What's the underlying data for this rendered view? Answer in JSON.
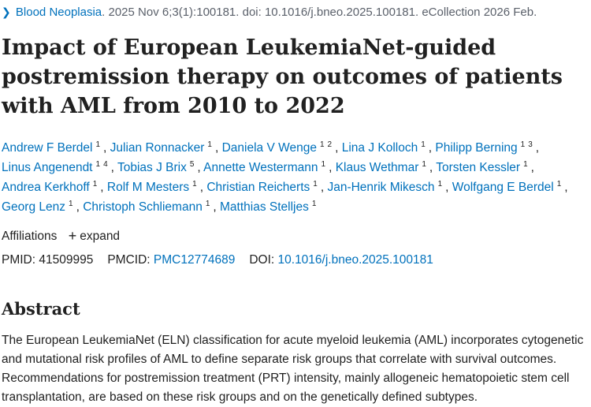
{
  "citation": {
    "journal": "Blood Neoplasia",
    "details": ". 2025 Nov 6;3(1):100181. doi: 10.1016/j.bneo.2025.100181. eCollection 2026 Feb."
  },
  "title": "Impact of European LeukemiaNet-guided postremission therapy on outcomes of patients with AML from 2010 to 2022",
  "authors": [
    {
      "name": "Andrew F Berdel",
      "aff": [
        "1"
      ]
    },
    {
      "name": "Julian Ronnacker",
      "aff": [
        "1"
      ]
    },
    {
      "name": "Daniela V Wenge",
      "aff": [
        "1",
        "2"
      ]
    },
    {
      "name": "Lina J Kolloch",
      "aff": [
        "1"
      ]
    },
    {
      "name": "Philipp Berning",
      "aff": [
        "1",
        "3"
      ]
    },
    {
      "name": "Linus Angenendt",
      "aff": [
        "1",
        "4"
      ]
    },
    {
      "name": "Tobias J Brix",
      "aff": [
        "5"
      ]
    },
    {
      "name": "Annette Westermann",
      "aff": [
        "1"
      ]
    },
    {
      "name": "Klaus Wethmar",
      "aff": [
        "1"
      ]
    },
    {
      "name": "Torsten Kessler",
      "aff": [
        "1"
      ]
    },
    {
      "name": "Andrea Kerkhoff",
      "aff": [
        "1"
      ]
    },
    {
      "name": "Rolf M Mesters",
      "aff": [
        "1"
      ]
    },
    {
      "name": "Christian Reicherts",
      "aff": [
        "1"
      ]
    },
    {
      "name": "Jan-Henrik Mikesch",
      "aff": [
        "1"
      ]
    },
    {
      "name": "Wolfgang E Berdel",
      "aff": [
        "1"
      ]
    },
    {
      "name": "Georg Lenz",
      "aff": [
        "1"
      ]
    },
    {
      "name": "Christoph Schliemann",
      "aff": [
        "1"
      ]
    },
    {
      "name": "Matthias Stelljes",
      "aff": [
        "1"
      ]
    }
  ],
  "affiliations": {
    "label": "Affiliations",
    "expand_label": "expand"
  },
  "ids": {
    "pmid_label": "PMID:",
    "pmid": "41509995",
    "pmcid_label": "PMCID:",
    "pmcid": "PMC12774689",
    "doi_label": "DOI:",
    "doi": "10.1016/j.bneo.2025.100181"
  },
  "abstract": {
    "heading": "Abstract",
    "text": "The European LeukemiaNet (ELN) classification for acute myeloid leukemia (AML) incorporates cytogenetic and mutational risk profiles of AML to define separate risk groups that correlate with survival outcomes. Recommendations for postremission treatment (PRT) intensity, mainly allogeneic hematopoietic stem cell transplantation, are based on these risk groups and on the genetically defined subtypes."
  }
}
